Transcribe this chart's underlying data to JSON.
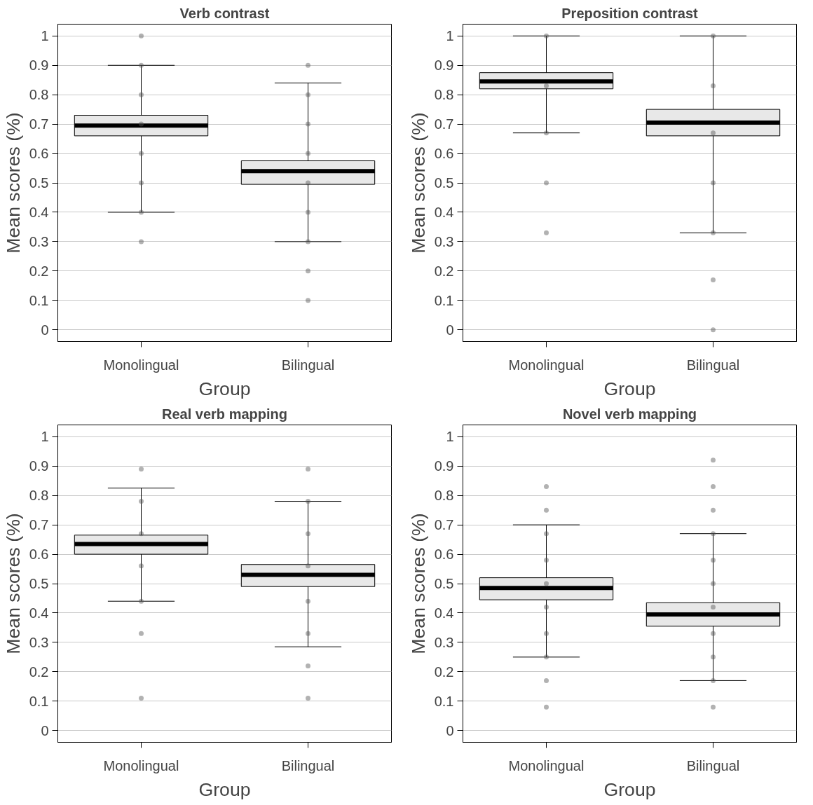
{
  "chart_data": [
    {
      "type": "box",
      "title": "Verb contrast",
      "xlabel": "Group",
      "ylabel": "Mean scores (%)",
      "categories": [
        "Monolingual",
        "Bilingual"
      ],
      "ylim": [
        -0.04,
        1.04
      ],
      "yticks": [
        0,
        0.1,
        0.2,
        0.3,
        0.4,
        0.5,
        0.6,
        0.7,
        0.8,
        0.9,
        1
      ],
      "grid": "y",
      "boxes": [
        {
          "low": 0.4,
          "q1": 0.66,
          "median": 0.695,
          "q3": 0.73,
          "high": 0.9
        },
        {
          "low": 0.3,
          "q1": 0.495,
          "median": 0.54,
          "q3": 0.575,
          "high": 0.84
        }
      ],
      "series": [
        {
          "type": "scatter",
          "color": "#555555",
          "x": [
            "Monolingual",
            "Monolingual",
            "Monolingual",
            "Monolingual",
            "Monolingual",
            "Monolingual",
            "Monolingual",
            "Monolingual",
            "Bilingual",
            "Bilingual",
            "Bilingual",
            "Bilingual",
            "Bilingual",
            "Bilingual",
            "Bilingual",
            "Bilingual",
            "Bilingual"
          ],
          "values": [
            1,
            0.9,
            0.8,
            0.7,
            0.6,
            0.5,
            0.4,
            0.3,
            0.9,
            0.8,
            0.7,
            0.6,
            0.5,
            0.4,
            0.3,
            0.2,
            0.1
          ]
        }
      ]
    },
    {
      "type": "box",
      "title": "Preposition contrast",
      "xlabel": "Group",
      "ylabel": "Mean scores (%)",
      "categories": [
        "Monolingual",
        "Bilingual"
      ],
      "ylim": [
        -0.04,
        1.04
      ],
      "yticks": [
        0,
        0.1,
        0.2,
        0.3,
        0.4,
        0.5,
        0.6,
        0.7,
        0.8,
        0.9,
        1
      ],
      "grid": "y",
      "boxes": [
        {
          "low": 0.67,
          "q1": 0.82,
          "median": 0.845,
          "q3": 0.875,
          "high": 1
        },
        {
          "low": 0.33,
          "q1": 0.66,
          "median": 0.705,
          "q3": 0.75,
          "high": 1
        }
      ],
      "series": [
        {
          "type": "scatter",
          "color": "#555555",
          "x": [
            "Monolingual",
            "Monolingual",
            "Monolingual",
            "Monolingual",
            "Monolingual",
            "Bilingual",
            "Bilingual",
            "Bilingual",
            "Bilingual",
            "Bilingual",
            "Bilingual",
            "Bilingual"
          ],
          "values": [
            1,
            0.83,
            0.67,
            0.5,
            0.33,
            1,
            0.83,
            0.67,
            0.5,
            0.33,
            0.17,
            0
          ]
        }
      ]
    },
    {
      "type": "box",
      "title": "Real verb mapping",
      "xlabel": "Group",
      "ylabel": "Mean scores (%)",
      "categories": [
        "Monolingual",
        "Bilingual"
      ],
      "ylim": [
        -0.04,
        1.04
      ],
      "yticks": [
        0,
        0.1,
        0.2,
        0.3,
        0.4,
        0.5,
        0.6,
        0.7,
        0.8,
        0.9,
        1
      ],
      "grid": "y",
      "boxes": [
        {
          "low": 0.44,
          "q1": 0.6,
          "median": 0.635,
          "q3": 0.665,
          "high": 0.825
        },
        {
          "low": 0.285,
          "q1": 0.49,
          "median": 0.53,
          "q3": 0.565,
          "high": 0.78
        }
      ],
      "series": [
        {
          "type": "scatter",
          "color": "#555555",
          "x": [
            "Monolingual",
            "Monolingual",
            "Monolingual",
            "Monolingual",
            "Monolingual",
            "Monolingual",
            "Monolingual",
            "Bilingual",
            "Bilingual",
            "Bilingual",
            "Bilingual",
            "Bilingual",
            "Bilingual",
            "Bilingual",
            "Bilingual"
          ],
          "values": [
            0.89,
            0.78,
            0.67,
            0.56,
            0.44,
            0.33,
            0.11,
            0.89,
            0.78,
            0.67,
            0.56,
            0.44,
            0.33,
            0.22,
            0.11
          ]
        }
      ]
    },
    {
      "type": "box",
      "title": "Novel verb mapping",
      "xlabel": "Group",
      "ylabel": "Mean scores (%)",
      "categories": [
        "Monolingual",
        "Bilingual"
      ],
      "ylim": [
        -0.04,
        1.04
      ],
      "yticks": [
        0,
        0.1,
        0.2,
        0.3,
        0.4,
        0.5,
        0.6,
        0.7,
        0.8,
        0.9,
        1
      ],
      "grid": "y",
      "boxes": [
        {
          "low": 0.25,
          "q1": 0.445,
          "median": 0.485,
          "q3": 0.52,
          "high": 0.7
        },
        {
          "low": 0.17,
          "q1": 0.355,
          "median": 0.395,
          "q3": 0.435,
          "high": 0.67
        }
      ],
      "series": [
        {
          "type": "scatter",
          "color": "#555555",
          "x": [
            "Monolingual",
            "Monolingual",
            "Monolingual",
            "Monolingual",
            "Monolingual",
            "Monolingual",
            "Monolingual",
            "Monolingual",
            "Monolingual",
            "Monolingual",
            "Bilingual",
            "Bilingual",
            "Bilingual",
            "Bilingual",
            "Bilingual",
            "Bilingual",
            "Bilingual",
            "Bilingual",
            "Bilingual",
            "Bilingual",
            "Bilingual"
          ],
          "values": [
            0.83,
            0.75,
            0.67,
            0.58,
            0.5,
            0.42,
            0.33,
            0.25,
            0.17,
            0.08,
            0.92,
            0.83,
            0.75,
            0.67,
            0.58,
            0.5,
            0.42,
            0.33,
            0.25,
            0.17,
            0.08
          ]
        }
      ]
    }
  ]
}
